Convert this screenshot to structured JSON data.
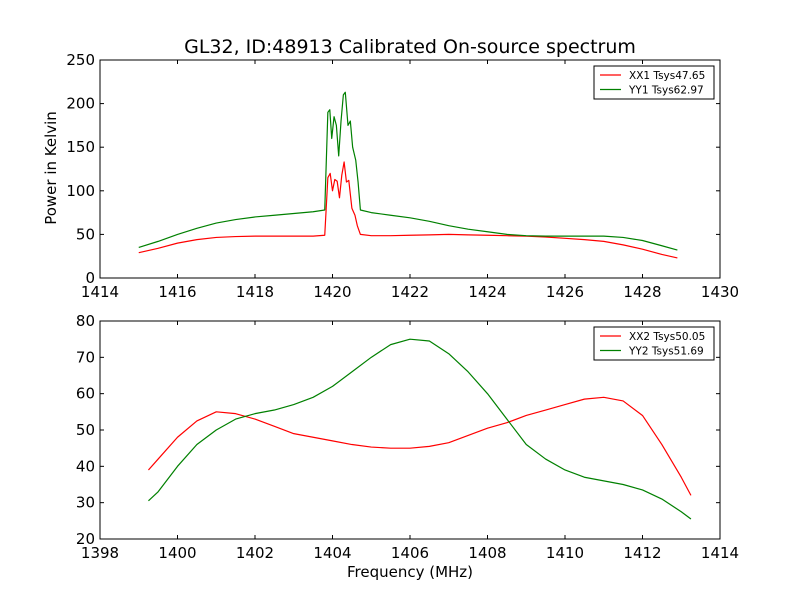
{
  "chart_data": [
    {
      "type": "line",
      "title": "GL32, ID:48913 Calibrated On-source spectrum",
      "xlabel": "",
      "ylabel": "Power in Kelvin",
      "xlim": [
        1414,
        1430
      ],
      "ylim": [
        0,
        250
      ],
      "xticks": [
        1414,
        1416,
        1418,
        1420,
        1422,
        1424,
        1426,
        1428,
        1430
      ],
      "yticks": [
        0,
        50,
        100,
        150,
        200,
        250
      ],
      "legend": "top-right",
      "grid": false,
      "series": [
        {
          "name": "XX1 Tsys47.65",
          "color": "#ff0000",
          "points": [
            [
              1415.0,
              29
            ],
            [
              1415.5,
              34
            ],
            [
              1416.0,
              40
            ],
            [
              1416.5,
              44
            ],
            [
              1417.0,
              46.5
            ],
            [
              1417.5,
              47.5
            ],
            [
              1418.0,
              48
            ],
            [
              1418.5,
              48
            ],
            [
              1419.0,
              48
            ],
            [
              1419.5,
              48
            ],
            [
              1419.8,
              49
            ],
            [
              1419.88,
              115
            ],
            [
              1419.94,
              120
            ],
            [
              1420.0,
              100
            ],
            [
              1420.06,
              113
            ],
            [
              1420.12,
              111
            ],
            [
              1420.18,
              92
            ],
            [
              1420.24,
              118
            ],
            [
              1420.3,
              133
            ],
            [
              1420.36,
              110
            ],
            [
              1420.42,
              112
            ],
            [
              1420.5,
              80
            ],
            [
              1420.58,
              72
            ],
            [
              1420.64,
              60
            ],
            [
              1420.72,
              50
            ],
            [
              1421.0,
              48.5
            ],
            [
              1421.5,
              48.5
            ],
            [
              1422.0,
              49
            ],
            [
              1422.5,
              49.5
            ],
            [
              1423.0,
              50
            ],
            [
              1423.5,
              49.5
            ],
            [
              1424.0,
              49
            ],
            [
              1424.5,
              48.5
            ],
            [
              1425.0,
              48
            ],
            [
              1425.5,
              47
            ],
            [
              1426.0,
              45.5
            ],
            [
              1426.5,
              44
            ],
            [
              1427.0,
              42
            ],
            [
              1427.5,
              38
            ],
            [
              1428.0,
              33
            ],
            [
              1428.5,
              27
            ],
            [
              1428.9,
              23
            ]
          ]
        },
        {
          "name": "YY1 Tsys62.97",
          "color": "#008000",
          "points": [
            [
              1415.0,
              35
            ],
            [
              1415.5,
              42
            ],
            [
              1416.0,
              50
            ],
            [
              1416.5,
              57
            ],
            [
              1417.0,
              63
            ],
            [
              1417.5,
              67
            ],
            [
              1418.0,
              70
            ],
            [
              1418.5,
              72
            ],
            [
              1419.0,
              74
            ],
            [
              1419.5,
              76
            ],
            [
              1419.8,
              78
            ],
            [
              1419.88,
              190
            ],
            [
              1419.93,
              193
            ],
            [
              1419.98,
              160
            ],
            [
              1420.04,
              185
            ],
            [
              1420.1,
              175
            ],
            [
              1420.16,
              140
            ],
            [
              1420.22,
              180
            ],
            [
              1420.28,
              210
            ],
            [
              1420.33,
              213
            ],
            [
              1420.4,
              175
            ],
            [
              1420.46,
              180
            ],
            [
              1420.52,
              150
            ],
            [
              1420.6,
              135
            ],
            [
              1420.66,
              110
            ],
            [
              1420.72,
              78
            ],
            [
              1421.0,
              75
            ],
            [
              1421.5,
              72
            ],
            [
              1422.0,
              69
            ],
            [
              1422.5,
              65
            ],
            [
              1423.0,
              60
            ],
            [
              1423.5,
              56
            ],
            [
              1424.0,
              53
            ],
            [
              1424.5,
              50
            ],
            [
              1425.0,
              48.5
            ],
            [
              1425.5,
              48
            ],
            [
              1426.0,
              48
            ],
            [
              1426.5,
              48
            ],
            [
              1427.0,
              48
            ],
            [
              1427.5,
              46.5
            ],
            [
              1428.0,
              43
            ],
            [
              1428.5,
              37
            ],
            [
              1428.9,
              32
            ]
          ]
        }
      ]
    },
    {
      "type": "line",
      "title": "",
      "xlabel": "Frequency (MHz)",
      "ylabel": "",
      "xlim": [
        1398,
        1414
      ],
      "ylim": [
        20,
        80
      ],
      "xticks": [
        1398,
        1400,
        1402,
        1404,
        1406,
        1408,
        1410,
        1412,
        1414
      ],
      "yticks": [
        20,
        30,
        40,
        50,
        60,
        70,
        80
      ],
      "legend": "top-right",
      "grid": false,
      "series": [
        {
          "name": "XX2 Tsys50.05",
          "color": "#ff0000",
          "points": [
            [
              1399.25,
              39
            ],
            [
              1399.5,
              42
            ],
            [
              1400.0,
              48
            ],
            [
              1400.5,
              52.5
            ],
            [
              1401.0,
              55
            ],
            [
              1401.5,
              54.5
            ],
            [
              1402.0,
              53
            ],
            [
              1402.5,
              51
            ],
            [
              1403.0,
              49
            ],
            [
              1403.5,
              48
            ],
            [
              1404.0,
              47
            ],
            [
              1404.5,
              46
            ],
            [
              1405.0,
              45.3
            ],
            [
              1405.5,
              45
            ],
            [
              1406.0,
              45
            ],
            [
              1406.5,
              45.5
            ],
            [
              1407.0,
              46.5
            ],
            [
              1407.5,
              48.5
            ],
            [
              1408.0,
              50.5
            ],
            [
              1408.5,
              52
            ],
            [
              1409.0,
              54
            ],
            [
              1409.5,
              55.5
            ],
            [
              1410.0,
              57
            ],
            [
              1410.5,
              58.5
            ],
            [
              1411.0,
              59
            ],
            [
              1411.5,
              58
            ],
            [
              1412.0,
              54
            ],
            [
              1412.5,
              46
            ],
            [
              1413.0,
              37
            ],
            [
              1413.25,
              32
            ]
          ]
        },
        {
          "name": "YY2 Tsys51.69",
          "color": "#008000",
          "points": [
            [
              1399.25,
              30.5
            ],
            [
              1399.5,
              33
            ],
            [
              1400.0,
              40
            ],
            [
              1400.5,
              46
            ],
            [
              1401.0,
              50
            ],
            [
              1401.5,
              53
            ],
            [
              1402.0,
              54.5
            ],
            [
              1402.5,
              55.5
            ],
            [
              1403.0,
              57
            ],
            [
              1403.5,
              59
            ],
            [
              1404.0,
              62
            ],
            [
              1404.5,
              66
            ],
            [
              1405.0,
              70
            ],
            [
              1405.5,
              73.5
            ],
            [
              1406.0,
              75
            ],
            [
              1406.5,
              74.5
            ],
            [
              1407.0,
              71
            ],
            [
              1407.5,
              66
            ],
            [
              1408.0,
              60
            ],
            [
              1408.5,
              53
            ],
            [
              1409.0,
              46
            ],
            [
              1409.5,
              42
            ],
            [
              1410.0,
              39
            ],
            [
              1410.5,
              37
            ],
            [
              1411.0,
              36
            ],
            [
              1411.5,
              35
            ],
            [
              1412.0,
              33.5
            ],
            [
              1412.5,
              31
            ],
            [
              1413.0,
              27.5
            ],
            [
              1413.25,
              25.5
            ]
          ]
        }
      ]
    }
  ]
}
